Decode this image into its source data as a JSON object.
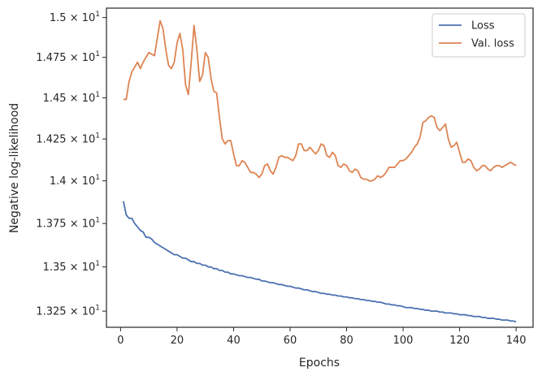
{
  "chart_data": {
    "type": "line",
    "xlabel": "Epochs",
    "ylabel": "Negative log-likelihood",
    "xlim": [
      -5,
      146
    ],
    "ylim": [
      13.16,
      15.06
    ],
    "y_scale": "log",
    "grid": false,
    "legend": "top-right",
    "xticks": [
      0,
      20,
      40,
      60,
      80,
      100,
      120,
      140
    ],
    "yticks": [
      {
        "value": 13.25,
        "mant": "1.325"
      },
      {
        "value": 13.5,
        "mant": "1.35"
      },
      {
        "value": 13.75,
        "mant": "1.375"
      },
      {
        "value": 14.0,
        "mant": "1.4"
      },
      {
        "value": 14.25,
        "mant": "1.425"
      },
      {
        "value": 14.5,
        "mant": "1.45"
      },
      {
        "value": 14.75,
        "mant": "1.475"
      },
      {
        "value": 15.0,
        "mant": "1.5"
      }
    ],
    "series": [
      {
        "name": "Loss",
        "color": "#4c72b0",
        "x_start": 1,
        "values": [
          13.88,
          13.8,
          13.78,
          13.78,
          13.75,
          13.73,
          13.71,
          13.7,
          13.67,
          13.67,
          13.66,
          13.64,
          13.63,
          13.62,
          13.61,
          13.6,
          13.59,
          13.58,
          13.57,
          13.57,
          13.56,
          13.55,
          13.55,
          13.54,
          13.53,
          13.53,
          13.52,
          13.52,
          13.51,
          13.51,
          13.5,
          13.5,
          13.49,
          13.49,
          13.48,
          13.48,
          13.47,
          13.47,
          13.46,
          13.46,
          13.455,
          13.45,
          13.45,
          13.445,
          13.44,
          13.44,
          13.435,
          13.43,
          13.43,
          13.42,
          13.42,
          13.415,
          13.41,
          13.41,
          13.405,
          13.4,
          13.4,
          13.395,
          13.39,
          13.39,
          13.385,
          13.38,
          13.38,
          13.375,
          13.37,
          13.37,
          13.365,
          13.36,
          13.36,
          13.355,
          13.35,
          13.35,
          13.345,
          13.345,
          13.34,
          13.34,
          13.335,
          13.335,
          13.33,
          13.33,
          13.325,
          13.325,
          13.32,
          13.32,
          13.315,
          13.315,
          13.31,
          13.31,
          13.305,
          13.305,
          13.3,
          13.3,
          13.295,
          13.29,
          13.29,
          13.285,
          13.285,
          13.28,
          13.28,
          13.275,
          13.27,
          13.27,
          13.27,
          13.265,
          13.265,
          13.26,
          13.26,
          13.255,
          13.255,
          13.25,
          13.25,
          13.25,
          13.245,
          13.245,
          13.24,
          13.24,
          13.24,
          13.235,
          13.235,
          13.23,
          13.23,
          13.23,
          13.225,
          13.225,
          13.22,
          13.22,
          13.22,
          13.215,
          13.215,
          13.21,
          13.21,
          13.21,
          13.205,
          13.205,
          13.2,
          13.2,
          13.2,
          13.195,
          13.195,
          13.19
        ]
      },
      {
        "name": "Val. loss",
        "color": "#dd8452",
        "x_start": 1,
        "values": [
          14.49,
          14.49,
          14.6,
          14.66,
          14.69,
          14.72,
          14.68,
          14.72,
          14.75,
          14.78,
          14.77,
          14.76,
          14.87,
          14.98,
          14.93,
          14.8,
          14.7,
          14.68,
          14.72,
          14.84,
          14.9,
          14.8,
          14.58,
          14.52,
          14.72,
          14.95,
          14.8,
          14.6,
          14.64,
          14.78,
          14.75,
          14.62,
          14.54,
          14.53,
          14.38,
          14.25,
          14.22,
          14.24,
          14.24,
          14.16,
          14.09,
          14.09,
          14.12,
          14.11,
          14.08,
          14.05,
          14.05,
          14.04,
          14.02,
          14.04,
          14.09,
          14.1,
          14.06,
          14.04,
          14.08,
          14.14,
          14.15,
          14.14,
          14.14,
          14.13,
          14.12,
          14.15,
          14.22,
          14.22,
          14.18,
          14.18,
          14.2,
          14.18,
          14.16,
          14.18,
          14.22,
          14.21,
          14.15,
          14.14,
          14.17,
          14.15,
          14.09,
          14.08,
          14.1,
          14.09,
          14.06,
          14.05,
          14.07,
          14.06,
          14.02,
          14.01,
          14.01,
          14.0,
          14.0,
          14.01,
          14.03,
          14.02,
          14.03,
          14.05,
          14.08,
          14.08,
          14.08,
          14.1,
          14.12,
          14.12,
          14.13,
          14.15,
          14.17,
          14.2,
          14.22,
          14.26,
          14.35,
          14.36,
          14.38,
          14.39,
          14.38,
          14.32,
          14.3,
          14.32,
          14.34,
          14.25,
          14.2,
          14.21,
          14.23,
          14.17,
          14.11,
          14.11,
          14.13,
          14.12,
          14.08,
          14.06,
          14.07,
          14.09,
          14.09,
          14.07,
          14.06,
          14.08,
          14.09,
          14.09,
          14.08,
          14.09,
          14.1,
          14.11,
          14.1,
          14.09
        ]
      }
    ]
  }
}
